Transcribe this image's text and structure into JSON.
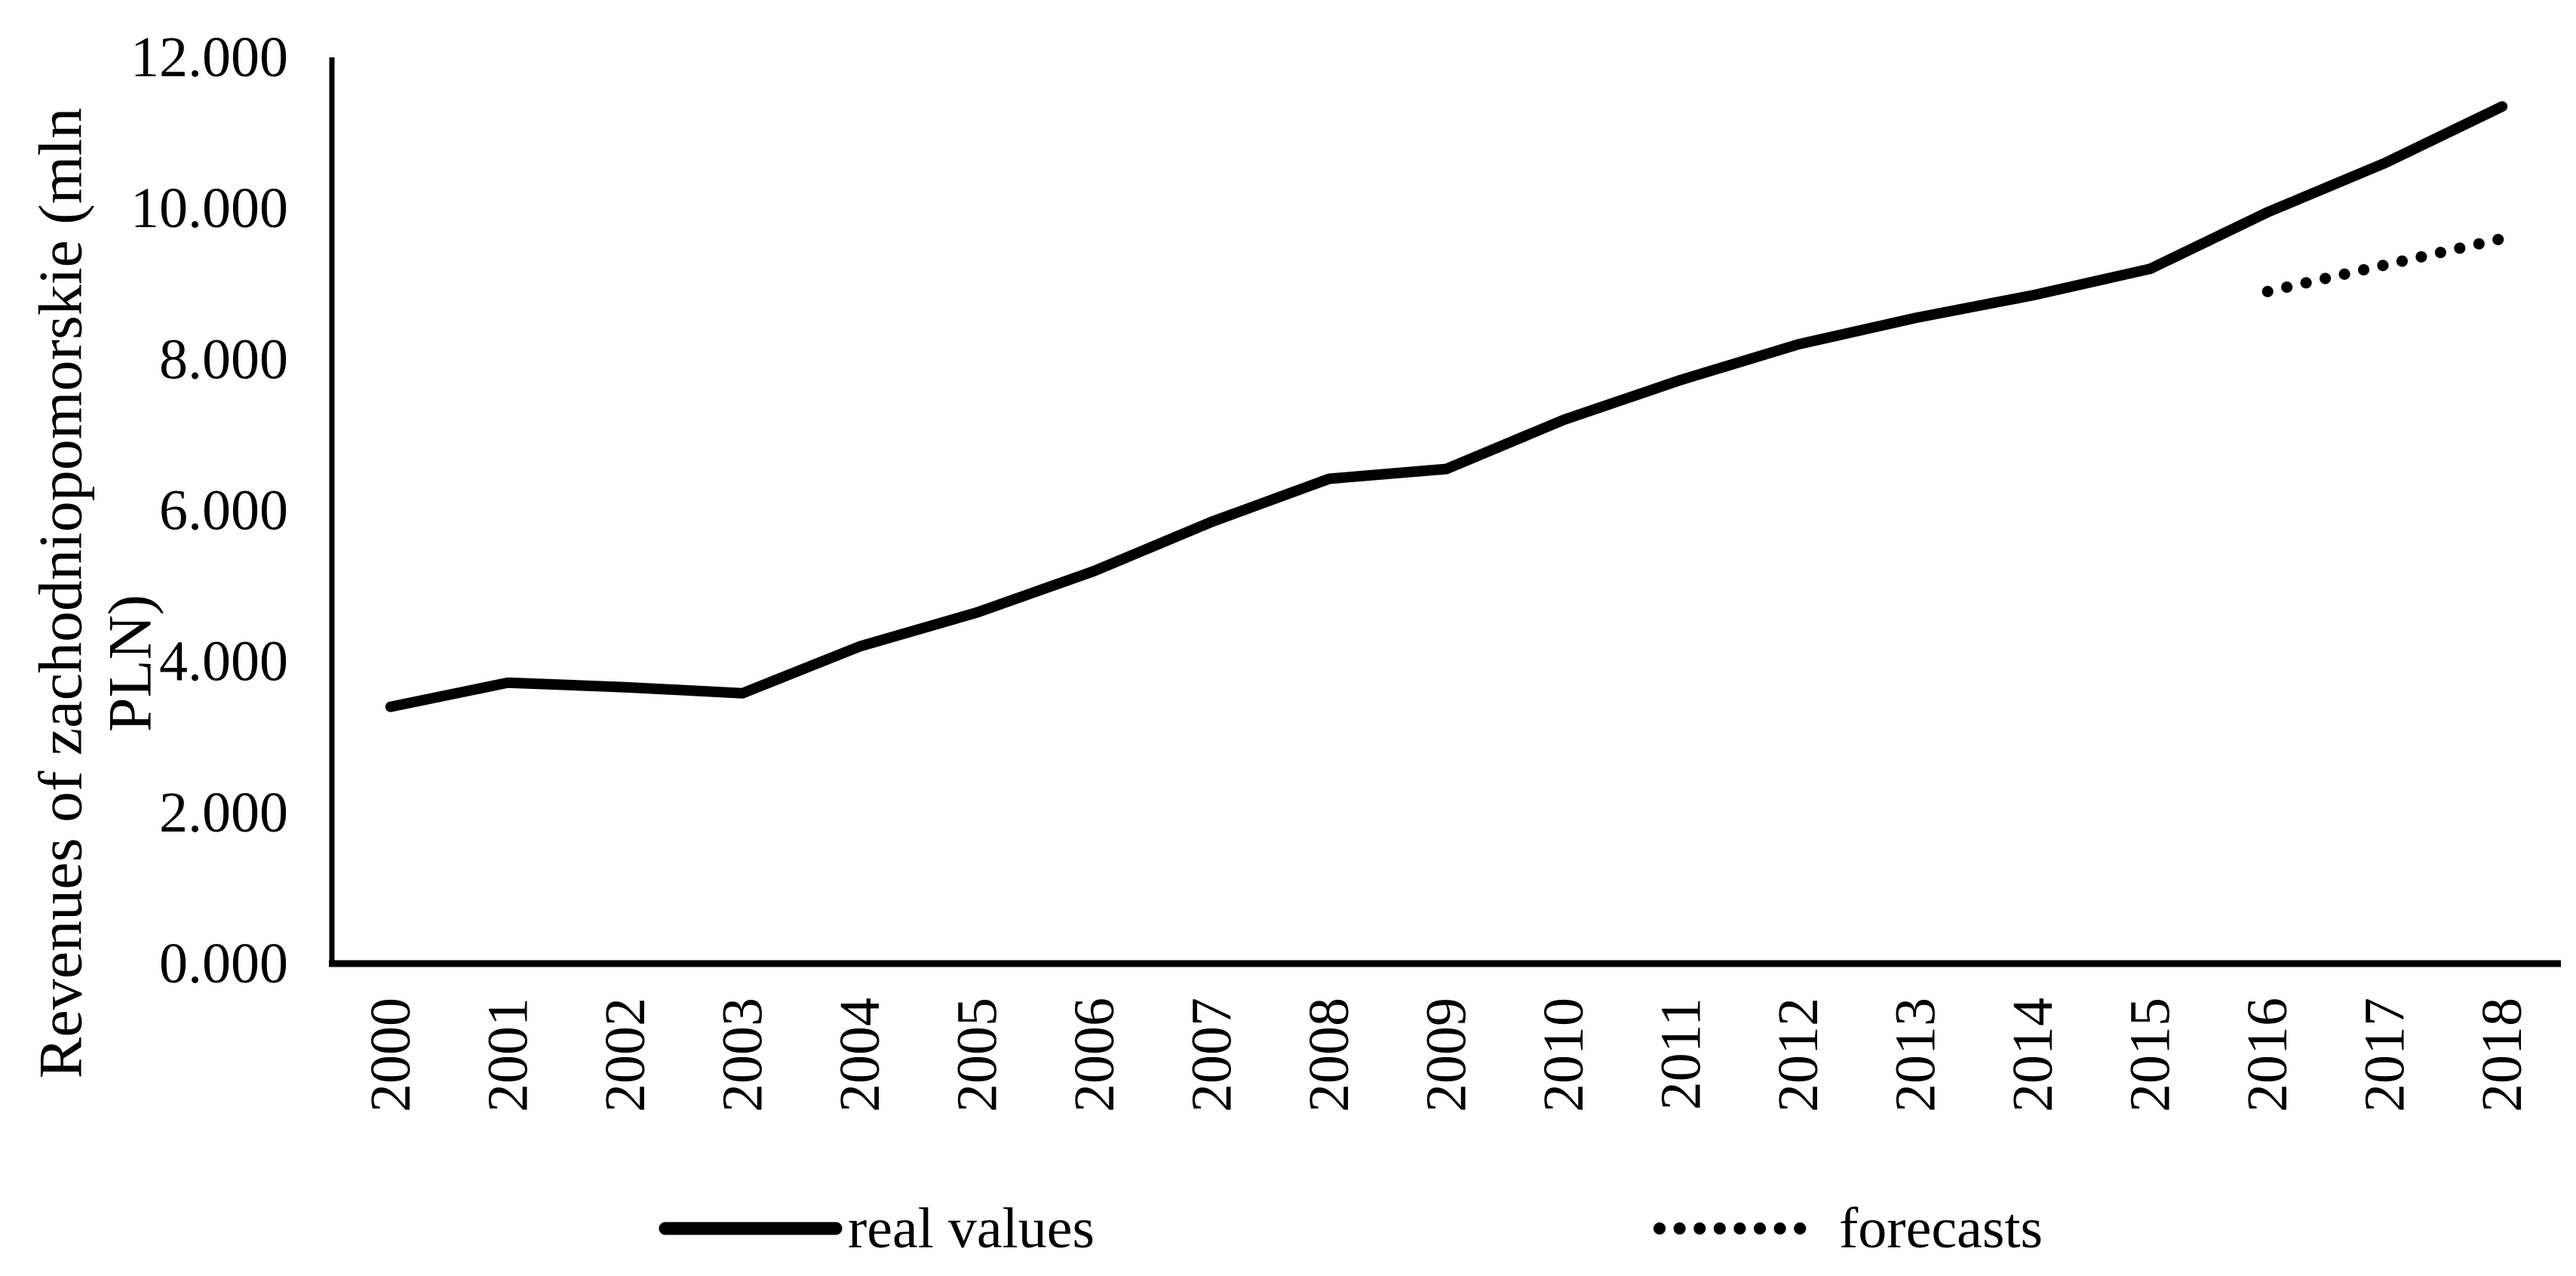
{
  "chart_data": {
    "type": "line",
    "title": "",
    "ylabel_lines": [
      "Revenues of zachodniopomorskie (mln",
      "PLN)"
    ],
    "xlabel": "",
    "categories": [
      "2000",
      "2001",
      "2002",
      "2003",
      "2004",
      "2005",
      "2006",
      "2007",
      "2008",
      "2009",
      "2010",
      "2011",
      "2012",
      "2013",
      "2014",
      "2015",
      "2016",
      "2017",
      "2018"
    ],
    "series": [
      {
        "name": "real values",
        "style": "solid",
        "values": [
          3.4,
          3.72,
          3.66,
          3.58,
          4.2,
          4.65,
          5.2,
          5.85,
          6.42,
          6.55,
          7.2,
          7.73,
          8.2,
          8.55,
          8.85,
          9.2,
          9.95,
          10.6,
          11.35
        ]
      },
      {
        "name": "forecasts",
        "style": "dotted",
        "values": [
          null,
          null,
          null,
          null,
          null,
          null,
          null,
          null,
          null,
          null,
          null,
          null,
          null,
          null,
          null,
          null,
          8.9,
          9.25,
          9.6
        ]
      }
    ],
    "ylim": [
      0,
      12
    ],
    "y_tick_step": 2,
    "y_tick_labels": [
      "0.000",
      "2.000",
      "4.000",
      "6.000",
      "8.000",
      "10.000",
      "12.000"
    ],
    "grid": false,
    "legend_position": "bottom"
  },
  "legend": {
    "real_label": "real values",
    "forecast_label": "forecasts"
  },
  "colors": {
    "line": "#000000",
    "background": "#ffffff"
  }
}
